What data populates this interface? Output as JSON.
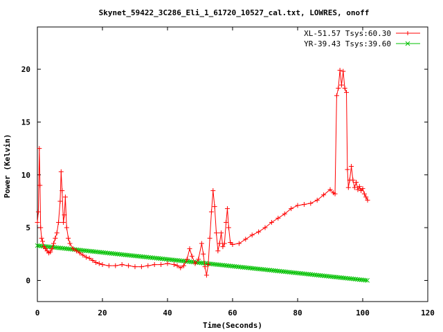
{
  "chart_data": {
    "type": "line",
    "title": "Skynet_59422_3C286_Eli_1_61720_10527_cal.txt, LOWRES, onoff",
    "xlabel": "Time(Seconds)",
    "ylabel": "Power (Kelvin)",
    "xlim": [
      0,
      120
    ],
    "ylim": [
      -2,
      24
    ],
    "xticks": [
      0,
      20,
      40,
      60,
      80,
      100,
      120
    ],
    "yticks": [
      0,
      5,
      10,
      15,
      20
    ],
    "grid": false,
    "legend_position": "top-right",
    "series": [
      {
        "name": "XL-51.57 Tsys:60.30",
        "color": "#ff0000",
        "marker": "plus",
        "points": [
          [
            0.0,
            5.5
          ],
          [
            0.3,
            6.5
          ],
          [
            0.6,
            12.5
          ],
          [
            0.8,
            9.0
          ],
          [
            1.0,
            5.0
          ],
          [
            1.3,
            4.0
          ],
          [
            1.6,
            3.7
          ],
          [
            2.0,
            3.2
          ],
          [
            2.5,
            3.0
          ],
          [
            3.0,
            2.8
          ],
          [
            3.5,
            2.6
          ],
          [
            4.0,
            2.7
          ],
          [
            4.5,
            3.0
          ],
          [
            5.0,
            3.5
          ],
          [
            5.5,
            4.0
          ],
          [
            6.0,
            4.5
          ],
          [
            6.5,
            5.5
          ],
          [
            7.0,
            7.5
          ],
          [
            7.3,
            10.3
          ],
          [
            7.6,
            8.5
          ],
          [
            8.0,
            5.5
          ],
          [
            8.3,
            6.2
          ],
          [
            8.6,
            7.9
          ],
          [
            9.0,
            5.0
          ],
          [
            9.5,
            4.0
          ],
          [
            10.0,
            3.5
          ],
          [
            11.0,
            3.0
          ],
          [
            12.0,
            2.8
          ],
          [
            13.0,
            2.6
          ],
          [
            14.0,
            2.4
          ],
          [
            15.0,
            2.2
          ],
          [
            16.0,
            2.1
          ],
          [
            17.0,
            1.9
          ],
          [
            18.0,
            1.7
          ],
          [
            19.0,
            1.6
          ],
          [
            20.0,
            1.5
          ],
          [
            22.0,
            1.4
          ],
          [
            24.0,
            1.4
          ],
          [
            26.0,
            1.5
          ],
          [
            28.0,
            1.4
          ],
          [
            30.0,
            1.3
          ],
          [
            32.0,
            1.3
          ],
          [
            34.0,
            1.4
          ],
          [
            36.0,
            1.5
          ],
          [
            38.0,
            1.5
          ],
          [
            40.0,
            1.6
          ],
          [
            42.0,
            1.5
          ],
          [
            43.0,
            1.4
          ],
          [
            44.0,
            1.2
          ],
          [
            45.0,
            1.4
          ],
          [
            46.0,
            2.0
          ],
          [
            46.8,
            3.0
          ],
          [
            47.5,
            2.3
          ],
          [
            48.5,
            1.6
          ],
          [
            49.5,
            2.0
          ],
          [
            50.5,
            3.5
          ],
          [
            51.0,
            2.5
          ],
          [
            51.5,
            1.3
          ],
          [
            52.0,
            0.5
          ],
          [
            52.5,
            1.5
          ],
          [
            53.0,
            4.0
          ],
          [
            53.5,
            6.5
          ],
          [
            54.0,
            8.5
          ],
          [
            54.5,
            7.0
          ],
          [
            55.0,
            4.5
          ],
          [
            55.5,
            2.8
          ],
          [
            56.0,
            3.5
          ],
          [
            56.5,
            4.5
          ],
          [
            57.0,
            3.2
          ],
          [
            57.5,
            3.5
          ],
          [
            58.0,
            5.5
          ],
          [
            58.4,
            6.8
          ],
          [
            58.8,
            5.0
          ],
          [
            59.3,
            3.6
          ],
          [
            60.0,
            3.4
          ],
          [
            62.0,
            3.5
          ],
          [
            64.0,
            3.9
          ],
          [
            66.0,
            4.3
          ],
          [
            68.0,
            4.6
          ],
          [
            70.0,
            5.0
          ],
          [
            72.0,
            5.5
          ],
          [
            74.0,
            5.9
          ],
          [
            76.0,
            6.3
          ],
          [
            78.0,
            6.8
          ],
          [
            80.0,
            7.1
          ],
          [
            82.0,
            7.2
          ],
          [
            84.0,
            7.3
          ],
          [
            86.0,
            7.6
          ],
          [
            88.0,
            8.1
          ],
          [
            90.0,
            8.6
          ],
          [
            91.0,
            8.3
          ],
          [
            91.5,
            8.2
          ],
          [
            92.0,
            17.5
          ],
          [
            92.5,
            18.2
          ],
          [
            93.0,
            19.9
          ],
          [
            93.5,
            18.5
          ],
          [
            94.0,
            19.8
          ],
          [
            94.5,
            18.2
          ],
          [
            95.0,
            17.8
          ],
          [
            95.3,
            10.5
          ],
          [
            95.6,
            8.8
          ],
          [
            96.0,
            9.5
          ],
          [
            96.5,
            10.8
          ],
          [
            97.0,
            9.5
          ],
          [
            97.5,
            8.8
          ],
          [
            98.0,
            9.3
          ],
          [
            98.5,
            8.6
          ],
          [
            99.0,
            8.9
          ],
          [
            99.5,
            8.5
          ],
          [
            100.0,
            8.7
          ],
          [
            100.5,
            8.2
          ],
          [
            101.0,
            7.9
          ],
          [
            101.5,
            7.6
          ]
        ]
      },
      {
        "name": "YR-39.43 Tsys:39.60",
        "color": "#00c000",
        "marker": "cross",
        "start": [
          0.0,
          3.3
        ],
        "end": [
          101.5,
          0.0
        ],
        "point_spacing": 0.6
      }
    ]
  }
}
